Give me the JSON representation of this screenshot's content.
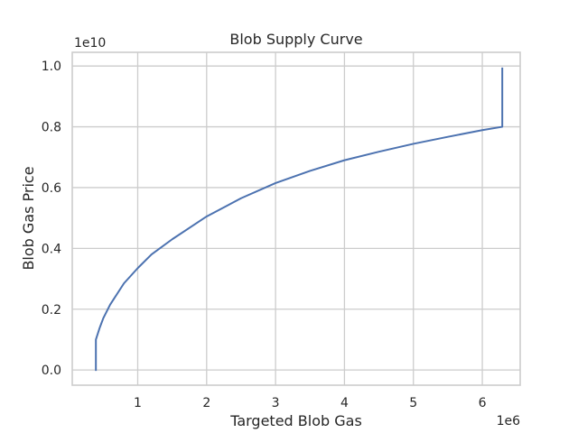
{
  "chart_data": {
    "type": "line",
    "title": "Blob Supply Curve",
    "xlabel": "Targeted Blob Gas",
    "ylabel": "Blob Gas Price",
    "x_offset_label": "1e6",
    "y_offset_label": "1e10",
    "xlim": [
      0.05,
      6.55
    ],
    "ylim": [
      -0.05,
      1.045
    ],
    "x_ticks": [
      1,
      2,
      3,
      4,
      5,
      6
    ],
    "x_tick_labels": [
      "1",
      "2",
      "3",
      "4",
      "5",
      "6"
    ],
    "y_ticks": [
      0.0,
      0.2,
      0.4,
      0.6,
      0.8,
      1.0
    ],
    "y_tick_labels": [
      "0.0",
      "0.2",
      "0.4",
      "0.6",
      "0.8",
      "1.0"
    ],
    "grid": true,
    "series": [
      {
        "color": "#4c72b0",
        "x": [
          0.393,
          0.393,
          0.45,
          0.5,
          0.6,
          0.8,
          1.0,
          1.2,
          1.5,
          2.0,
          2.5,
          3.0,
          3.5,
          4.0,
          4.5,
          5.0,
          5.5,
          6.0,
          6.29,
          6.29
        ],
        "y": [
          0.0,
          0.1,
          0.14,
          0.17,
          0.215,
          0.285,
          0.335,
          0.38,
          0.43,
          0.505,
          0.565,
          0.615,
          0.655,
          0.69,
          0.718,
          0.744,
          0.767,
          0.789,
          0.8,
          0.992
        ]
      }
    ]
  }
}
